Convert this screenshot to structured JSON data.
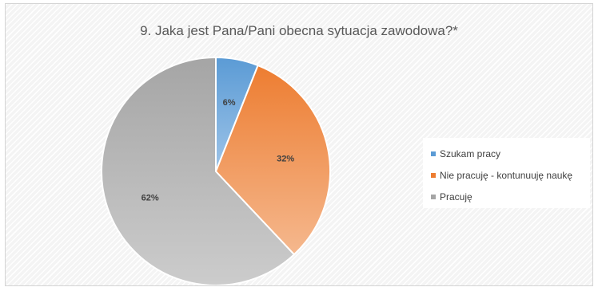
{
  "chart_data": {
    "type": "pie",
    "title": "9. Jaka jest Pana/Pani obecna sytuacja zawodowa?*",
    "start_angle_deg": 0,
    "direction": "clockwise",
    "slices": [
      {
        "label": "Szukam pracy",
        "value": 6,
        "display": "6%",
        "color": "#5B9BD5",
        "color_light": "#9EC4E8"
      },
      {
        "label": "Nie pracuję - kontunuuję naukę",
        "value": 32,
        "display": "32%",
        "color": "#ED7D31",
        "color_light": "#F5B88E"
      },
      {
        "label": "Pracuję",
        "value": 62,
        "display": "62%",
        "color": "#A5A5A5",
        "color_light": "#CCCCCC"
      }
    ],
    "legend": {
      "position": "right"
    }
  }
}
